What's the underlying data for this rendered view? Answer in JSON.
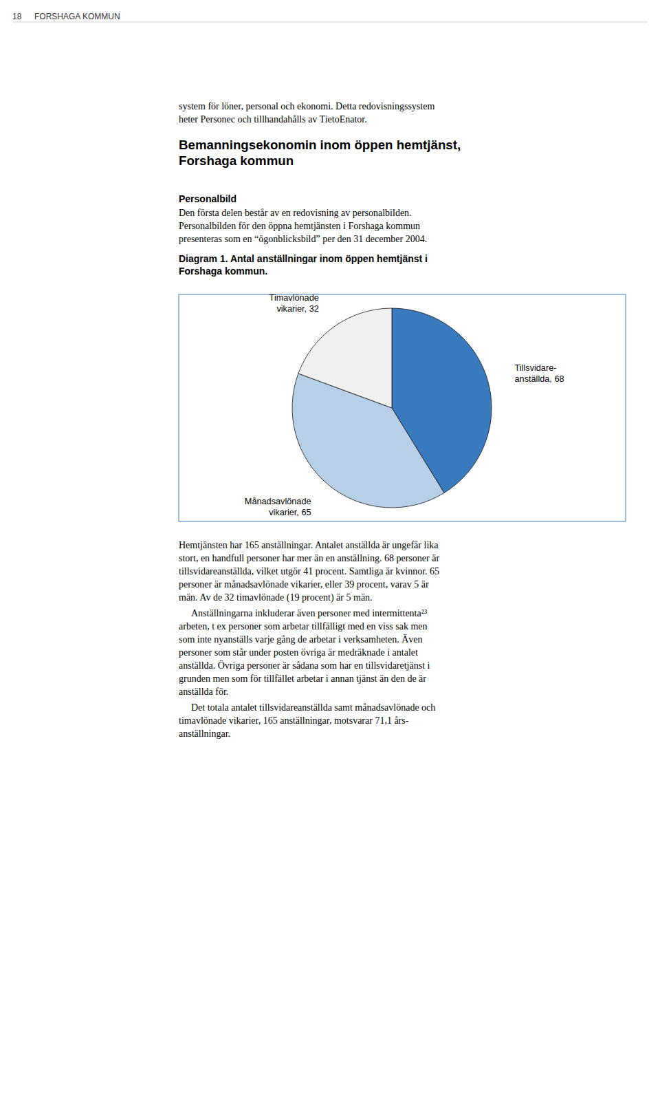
{
  "page": {
    "page_number": "18",
    "page_header": "FORSHAGA KOMMUN",
    "intro_text_lines": [
      "system för löner, personal och ekonomi. Detta redovisningssystem",
      "heter Personec och tillhandahålls av TietoEnator."
    ],
    "section_title": "Bemanningsekonomin inom öppen hemtjänst,\nForshaga kommun",
    "subsection_title": "Personalbild",
    "subsection_body": [
      "Den första delen består av en redovisning av personalbilden.",
      "Personalbilden för den öppna hemtjänsten i Forshaga kommun",
      "presenteras som en “ögonblicksbild” per den 31 december 2004."
    ],
    "body_paragraphs": [
      "Hemtjänsten har 165 anställningar. Antalet anställda är ungefär lika\nstort, en handfull personer har mer än en anställning. 68 personer är\ntillsvidareanställda, vilket utgör 41 procent. Samtliga är kvinnor. 65\npersoner är månadsavlönade vikarier, eller 39 procent, varav 5 är\nmän. Av de 32 timavlönade (19 procent) är 5 män.",
      "Anställningarna inkluderar även personer med intermittenta²³\narbeten, t ex personer som arbetar tillfälligt med en viss sak men\nsom inte nyanställs varje gång de arbetar i verksamheten. Även\npersoner som står under posten övriga är medräknade i antalet\nanställda. Övriga personer är sådana som har en tillsvidaretjänst i\ngrunden men som för tillfället arbetar i annan tjänst än den de är\nanställda för.",
      "Det totala antalet tillsvidareanställda samt månadsavlönade och\ntimavlönade vikarier, 165 anställningar, motsvarar 71,1 års-\nanställningar."
    ]
  },
  "chart_data": {
    "type": "pie",
    "title": "Diagram 1. Antal anställningar inom öppen hemtjänst i\nForshaga kommun.",
    "categories": [
      "Tillsvidare-\nanställda, 68",
      "Månadsavlönade\nvikarier, 65",
      "Timavlönade\nvikarier, 32"
    ],
    "values": [
      68,
      65,
      32
    ],
    "colors": [
      "#3a7abf",
      "#b8cfe8",
      "#f0f0f0"
    ]
  }
}
